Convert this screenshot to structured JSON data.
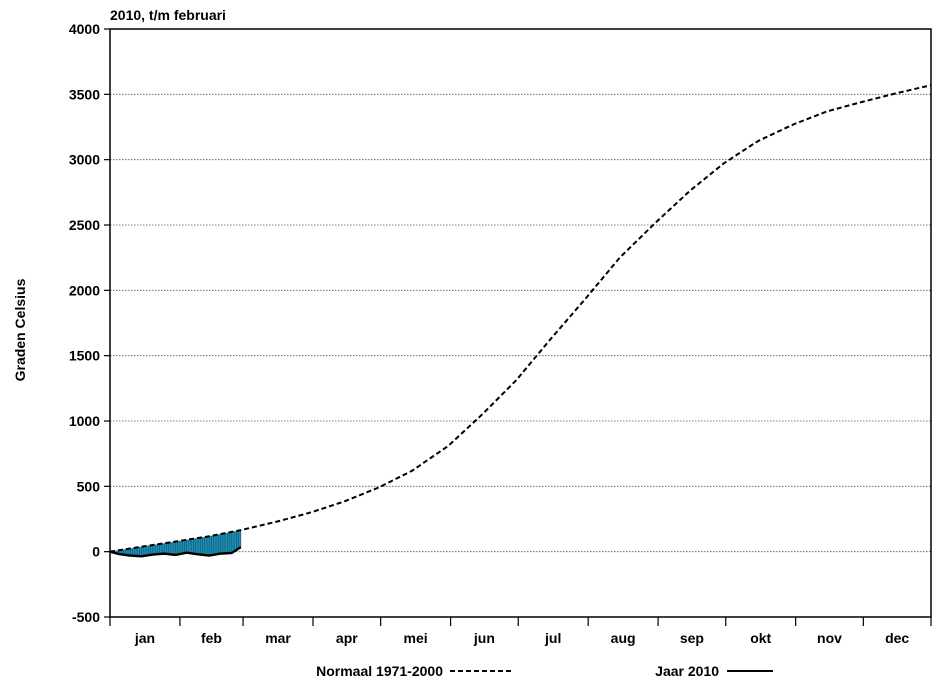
{
  "chart_data": {
    "type": "line",
    "title": "2010, t/m februari",
    "ylabel": "Graden Celsius",
    "xlabel": "",
    "ylim": [
      -500,
      4000
    ],
    "yticks": [
      -500,
      0,
      500,
      1000,
      1500,
      2000,
      2500,
      3000,
      3500,
      4000
    ],
    "grid": true,
    "categories": [
      "jan",
      "feb",
      "mar",
      "apr",
      "mei",
      "jun",
      "jul",
      "aug",
      "sep",
      "okt",
      "nov",
      "dec"
    ],
    "x_unit": "day of year",
    "x_range": [
      1,
      365
    ],
    "fill_between_series": "Normaal 1971-2000 and Jaar 2010, jan–feb",
    "fill_color": "#1e8fb5",
    "series": [
      {
        "name": "Normaal 1971-2000",
        "style": "dashed",
        "x": [
          1,
          15,
          31,
          45,
          59,
          75,
          90,
          105,
          120,
          135,
          151,
          166,
          181,
          196,
          212,
          227,
          243,
          258,
          273,
          288,
          304,
          319,
          334,
          350,
          365
        ],
        "values": [
          0,
          38,
          80,
          118,
          165,
          230,
          300,
          385,
          490,
          620,
          810,
          1050,
          1310,
          1620,
          1940,
          2250,
          2520,
          2760,
          2970,
          3140,
          3270,
          3370,
          3440,
          3510,
          3570
        ]
      },
      {
        "name": "Jaar 2010",
        "style": "solid",
        "x": [
          1,
          5,
          10,
          15,
          20,
          25,
          30,
          35,
          40,
          45,
          50,
          55,
          59
        ],
        "values": [
          0,
          -18,
          -30,
          -35,
          -22,
          -15,
          -25,
          -8,
          -20,
          -30,
          -15,
          -10,
          35
        ]
      }
    ],
    "legend": {
      "placement": "bottom",
      "items": [
        {
          "label": "Normaal 1971-2000",
          "style": "dashed"
        },
        {
          "label": "Jaar 2010",
          "style": "solid"
        }
      ]
    }
  }
}
